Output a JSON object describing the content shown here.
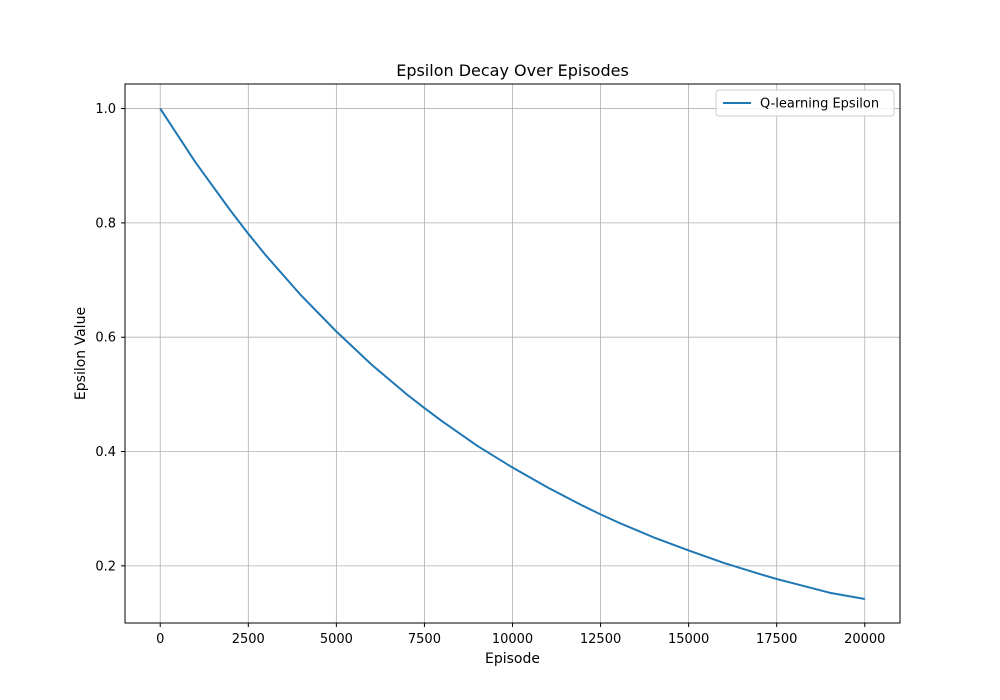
{
  "chart_data": {
    "type": "line",
    "title": "Epsilon Decay Over Episodes",
    "xlabel": "Episode",
    "ylabel": "Epsilon Value",
    "xlim": [
      -1000,
      21000
    ],
    "ylim": [
      0.1,
      1.043
    ],
    "xticks": [
      0,
      2500,
      5000,
      7500,
      10000,
      12500,
      15000,
      17500,
      20000
    ],
    "yticks": [
      0.2,
      0.4,
      0.6,
      0.8,
      1.0
    ],
    "ytick_labels": [
      "0.2",
      "0.4",
      "0.6",
      "0.8",
      "1.0"
    ],
    "grid": true,
    "legend_position": "top-right",
    "series": [
      {
        "name": "Q-learning Epsilon",
        "color": "#1f77b4",
        "x": [
          0,
          1000,
          2000,
          2500,
          3000,
          4000,
          5000,
          6000,
          7000,
          7500,
          8000,
          9000,
          10000,
          11000,
          12000,
          12500,
          13000,
          14000,
          15000,
          16000,
          17000,
          17500,
          18000,
          19000,
          20000
        ],
        "y": [
          1.0,
          0.906,
          0.821,
          0.781,
          0.743,
          0.673,
          0.61,
          0.552,
          0.5,
          0.476,
          0.453,
          0.41,
          0.372,
          0.337,
          0.305,
          0.29,
          0.276,
          0.25,
          0.227,
          0.205,
          0.186,
          0.177,
          0.169,
          0.153,
          0.142
        ]
      }
    ]
  }
}
